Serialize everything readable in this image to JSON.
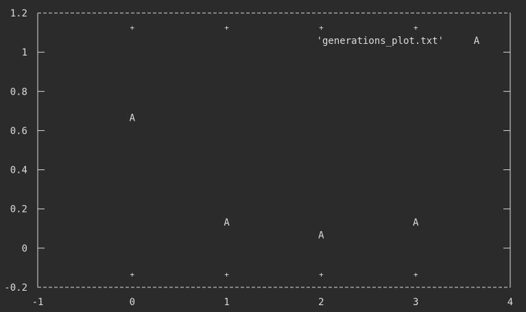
{
  "chart_data": {
    "type": "scatter",
    "title": "",
    "xlabel": "",
    "ylabel": "",
    "xlim": [
      -1,
      4
    ],
    "ylim": [
      -0.2,
      1.2
    ],
    "x_ticks": [
      "-1",
      "0",
      "1",
      "2",
      "3",
      "4"
    ],
    "y_ticks": [
      "-0.2",
      "0",
      "0.2",
      "0.4",
      "0.6",
      "0.8",
      "1",
      "1.2"
    ],
    "x_tick_values": [
      -1,
      0,
      1,
      2,
      3,
      4
    ],
    "y_tick_values": [
      -0.2,
      0,
      0.2,
      0.4,
      0.6,
      0.8,
      1,
      1.2
    ],
    "grid": false,
    "legend_position": "top-right",
    "series": [
      {
        "name": "'generations_plot.txt'",
        "marker": "A",
        "x": [
          0,
          1,
          2,
          3
        ],
        "y": [
          0.667,
          0.133,
          0.067,
          0.133
        ]
      }
    ],
    "colors": {
      "background": "#2b2b2b",
      "foreground": "#dcdcdc"
    }
  }
}
